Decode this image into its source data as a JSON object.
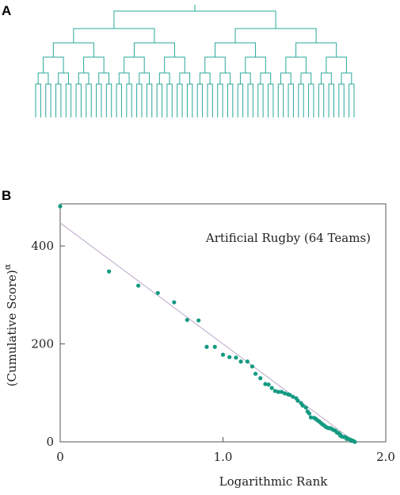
{
  "panel_labels": [
    "A",
    "B"
  ],
  "chart_data": {
    "type": "scatter",
    "annotation": "Artificial Rugby (64 Teams)",
    "x_label": "Logarithmic Rank",
    "y_label": "(Cumulative Score)",
    "y_label_exponent": "α",
    "xlim": [
      0,
      2.0
    ],
    "ylim": [
      0,
      486
    ],
    "xticks": [
      0,
      {
        "value": 1,
        "label": "1.0"
      },
      {
        "value": 2,
        "label": "2.0"
      }
    ],
    "yticks": [
      0,
      200,
      400
    ],
    "color": "#139a82",
    "line_color": "#b9a6c8",
    "x": [
      0,
      0.3,
      0.48,
      0.6,
      0.7,
      0.78,
      0.85,
      0.9,
      0.95,
      1.0,
      1.04,
      1.08,
      1.11,
      1.15,
      1.18,
      1.2,
      1.23,
      1.26,
      1.28,
      1.3,
      1.32,
      1.34,
      1.36,
      1.38,
      1.4,
      1.41,
      1.43,
      1.45,
      1.46,
      1.48,
      1.49,
      1.51,
      1.52,
      1.53,
      1.54,
      1.56,
      1.57,
      1.58,
      1.59,
      1.6,
      1.61,
      1.62,
      1.63,
      1.64,
      1.65,
      1.66,
      1.67,
      1.68,
      1.69,
      1.7,
      1.71,
      1.72,
      1.72,
      1.73,
      1.74,
      1.75,
      1.76,
      1.76,
      1.77,
      1.78,
      1.79,
      1.79,
      1.8,
      1.81
    ],
    "values": [
      481,
      348,
      319,
      304,
      285,
      249,
      248,
      194,
      194,
      178,
      173,
      172,
      164,
      164,
      154,
      139,
      130,
      118,
      117,
      110,
      104,
      102,
      102,
      99,
      97,
      96,
      92,
      89,
      84,
      79,
      74,
      70,
      62,
      58,
      50,
      49,
      47,
      44,
      42,
      39,
      36,
      34,
      31,
      29,
      28,
      28,
      26,
      24,
      23,
      19,
      18,
      15,
      13,
      11,
      10,
      10,
      8,
      6,
      6,
      5,
      3,
      2,
      2,
      0
    ],
    "trend_line": {
      "x": [
        0,
        1.81
      ],
      "values": [
        447,
        0
      ]
    }
  }
}
